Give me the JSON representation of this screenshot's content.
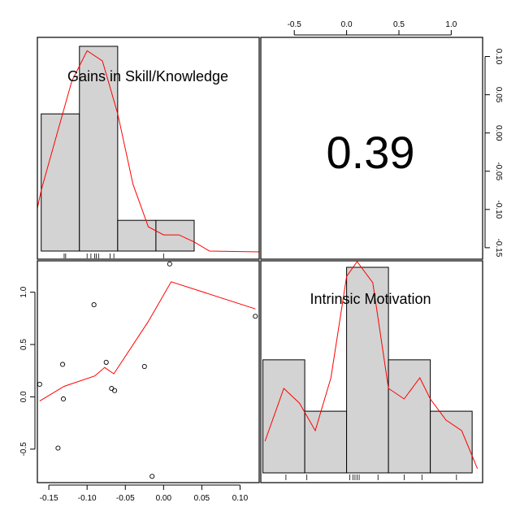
{
  "chart_data": {
    "type": "scatter-matrix",
    "variables": [
      "Gains in Skill/Knowledge",
      "Intrinsic Motivation"
    ],
    "correlation_label": "0.39",
    "x_axis_bottom": {
      "ticks": [
        -0.15,
        -0.1,
        -0.05,
        0.0,
        0.05,
        0.1
      ],
      "labels": [
        "-0.15",
        "-0.10",
        "-0.05",
        "0.00",
        "0.05",
        "0.10"
      ],
      "range": [
        -0.165,
        0.125
      ]
    },
    "x_axis_top": {
      "ticks": [
        -0.5,
        0.0,
        0.5,
        1.0
      ],
      "labels": [
        "-0.5",
        "0.0",
        "0.5",
        "1.0"
      ],
      "range": [
        -0.82,
        1.3
      ]
    },
    "y_axis_left": {
      "ticks": [
        -0.5,
        0.0,
        0.5,
        1.0
      ],
      "labels": [
        "-0.5",
        "0.0",
        "0.5",
        "1.0"
      ],
      "range": [
        -0.82,
        1.3
      ]
    },
    "y_axis_right": {
      "ticks": [
        -0.15,
        -0.1,
        -0.05,
        0.0,
        0.05,
        0.1
      ],
      "labels": [
        "-0.15",
        "-0.10",
        "-0.05",
        "0.00",
        "0.05",
        "0.10"
      ],
      "range": [
        -0.165,
        0.125
      ]
    },
    "hist_gains": {
      "breaks": [
        -0.16,
        -0.11,
        -0.06,
        -0.01,
        0.04
      ],
      "relative_heights": [
        0.67,
        1.0,
        0.15,
        0.15
      ],
      "density_curve": [
        [
          -0.16,
          0.3
        ],
        [
          -0.14,
          0.57
        ],
        [
          -0.12,
          0.84
        ],
        [
          -0.1,
          0.99
        ],
        [
          -0.08,
          0.94
        ],
        [
          -0.06,
          0.68
        ],
        [
          -0.04,
          0.33
        ],
        [
          -0.02,
          0.12
        ],
        [
          0.0,
          0.08
        ],
        [
          0.02,
          0.08
        ],
        [
          0.04,
          0.045
        ],
        [
          0.06,
          0.0
        ]
      ],
      "rug": [
        -0.13,
        -0.128,
        -0.1,
        -0.095,
        -0.09,
        -0.088,
        -0.085,
        -0.07,
        -0.065,
        0.0
      ]
    },
    "hist_motivation": {
      "breaks": [
        -0.8,
        -0.4,
        0.0,
        0.4,
        0.8,
        1.2
      ],
      "relative_heights": [
        0.55,
        0.3,
        1.0,
        0.55,
        0.3
      ],
      "density_curve": [
        [
          -0.78,
          0.15
        ],
        [
          -0.6,
          0.4
        ],
        [
          -0.45,
          0.33
        ],
        [
          -0.3,
          0.2
        ],
        [
          -0.15,
          0.45
        ],
        [
          0.0,
          0.93
        ],
        [
          0.1,
          1.0
        ],
        [
          0.25,
          0.9
        ],
        [
          0.4,
          0.4
        ],
        [
          0.55,
          0.35
        ],
        [
          0.7,
          0.45
        ],
        [
          0.8,
          0.35
        ],
        [
          0.95,
          0.25
        ],
        [
          1.1,
          0.2
        ],
        [
          1.25,
          0.02
        ]
      ],
      "rug": [
        -0.58,
        -0.38,
        0.03,
        0.06,
        0.08,
        0.1,
        0.12,
        0.3,
        0.55,
        0.72,
        1.05
      ]
    },
    "scatter_points": [
      [
        -0.162,
        0.12
      ],
      [
        -0.132,
        0.31
      ],
      [
        -0.131,
        -0.02
      ],
      [
        -0.138,
        -0.49
      ],
      [
        -0.091,
        0.88
      ],
      [
        -0.075,
        0.33
      ],
      [
        -0.068,
        0.08
      ],
      [
        -0.064,
        0.06
      ],
      [
        -0.025,
        0.29
      ],
      [
        -0.015,
        -0.76
      ],
      [
        0.008,
        1.27
      ],
      [
        0.12,
        0.77
      ]
    ],
    "scatter_smoother": [
      [
        -0.162,
        -0.04
      ],
      [
        -0.13,
        0.1
      ],
      [
        -0.09,
        0.2
      ],
      [
        -0.077,
        0.28
      ],
      [
        -0.065,
        0.22
      ],
      [
        -0.02,
        0.72
      ],
      [
        0.01,
        1.1
      ],
      [
        0.12,
        0.84
      ]
    ],
    "colors": {
      "fit": "#ff0000",
      "bars": "#d3d3d3",
      "axes": "#000000"
    }
  }
}
